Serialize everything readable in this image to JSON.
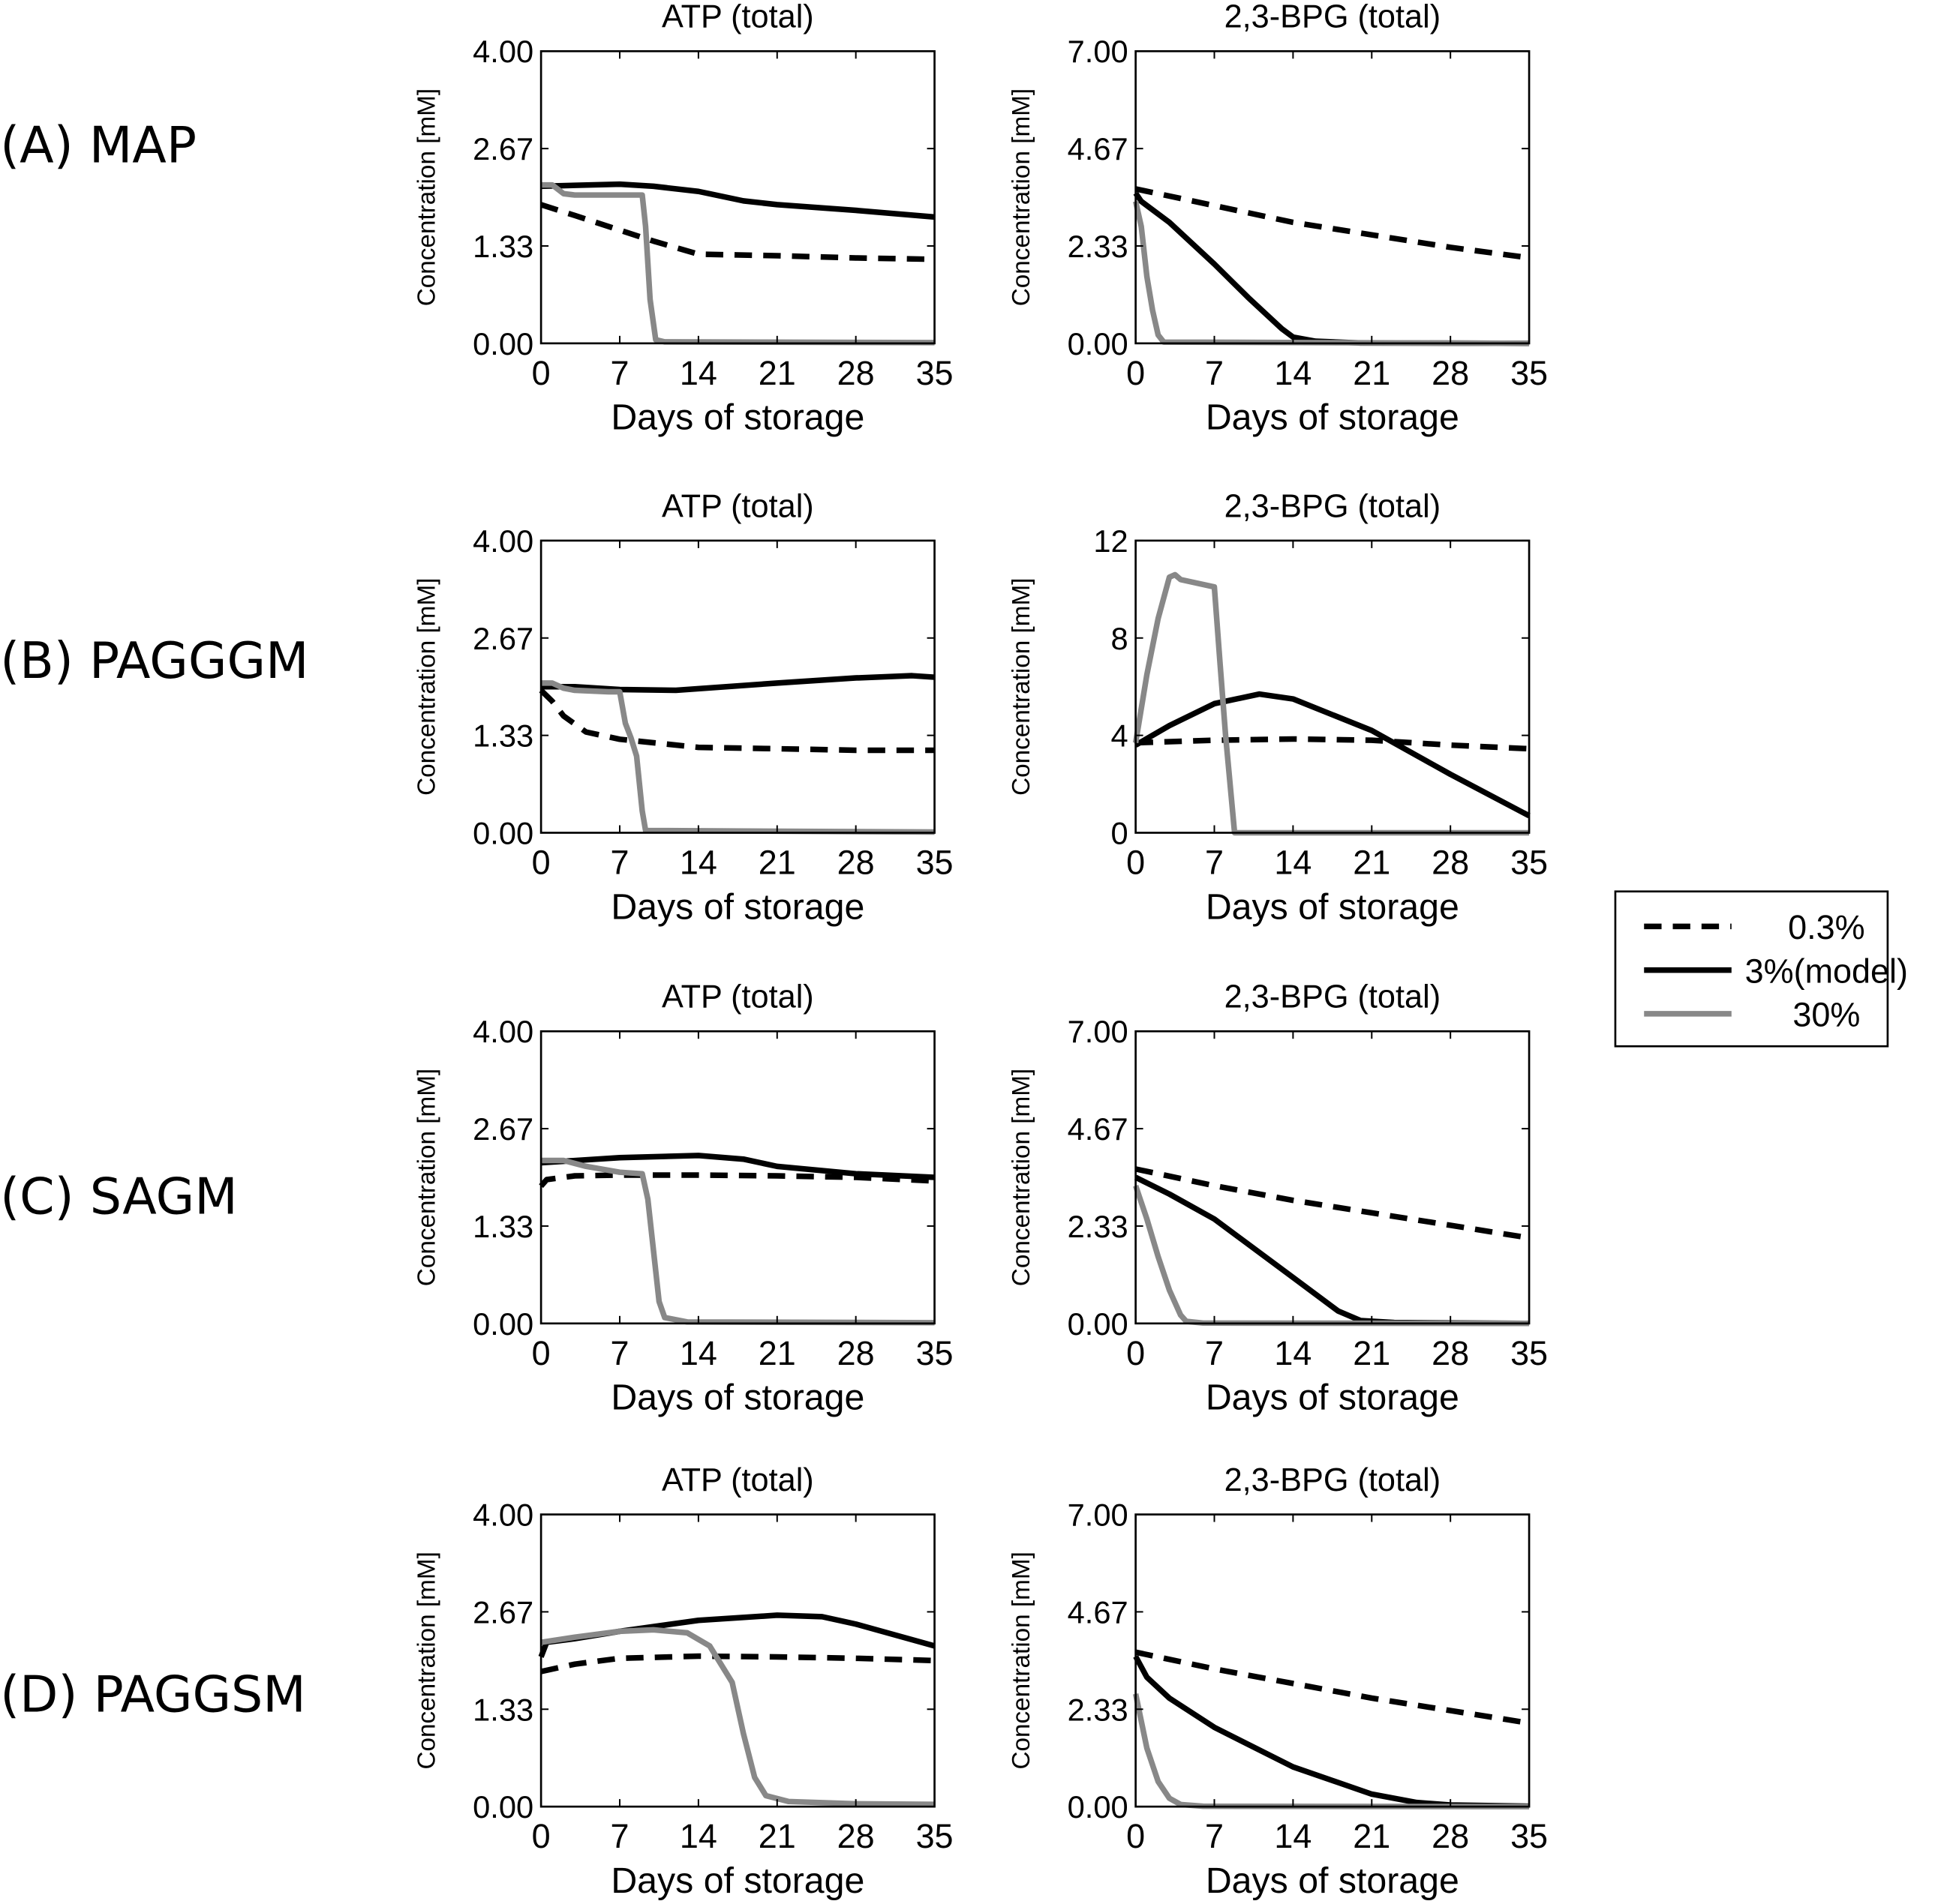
{
  "chart_data": {
    "type": "line",
    "legend": {
      "placement": "right",
      "entries": [
        {
          "label": "0.3%",
          "color": "#000000",
          "style": "dashed"
        },
        {
          "label": "3%(model)",
          "color": "#000000",
          "style": "solid"
        },
        {
          "label": "30%",
          "color": "#888888",
          "style": "solid"
        }
      ]
    },
    "rows": [
      {
        "label": "(A) MAP",
        "panels": [
          {
            "title": "ATP (total)",
            "xlabel": "Days of storage",
            "ylabel": "Concentration [mM]",
            "xlim": [
              0,
              35
            ],
            "ylim": [
              0,
              4
            ],
            "xticks": [
              "0",
              "7",
              "14",
              "21",
              "28",
              "35"
            ],
            "yticks": [
              "0.00",
              "1.33",
              "2.67",
              "4.00"
            ],
            "series": [
              {
                "x": [
                  0,
                  3,
                  7,
                  10,
                  14,
                  21,
                  28,
                  35
                ],
                "y": [
                  1.9,
                  1.75,
                  1.55,
                  1.4,
                  1.22,
                  1.2,
                  1.17,
                  1.15
                ]
              },
              {
                "x": [
                  0,
                  7,
                  10,
                  14,
                  18,
                  21,
                  28,
                  35
                ],
                "y": [
                  2.15,
                  2.18,
                  2.15,
                  2.08,
                  1.95,
                  1.9,
                  1.82,
                  1.73
                ]
              },
              {
                "x": [
                  0,
                  1,
                  2,
                  3,
                  7,
                  9,
                  9.3,
                  9.7,
                  10.2,
                  11,
                  35
                ],
                "y": [
                  2.17,
                  2.17,
                  2.05,
                  2.03,
                  2.03,
                  2.03,
                  1.6,
                  0.6,
                  0.05,
                  0.02,
                  0.01
                ]
              }
            ]
          },
          {
            "title": "2,3-BPG (total)",
            "xlabel": "Days of storage",
            "ylabel": "Concentration [mM]",
            "xlim": [
              0,
              35
            ],
            "ylim": [
              0,
              7
            ],
            "xticks": [
              "0",
              "7",
              "14",
              "21",
              "28",
              "35"
            ],
            "yticks": [
              "0.00",
              "2.33",
              "4.67",
              "7.00"
            ],
            "series": [
              {
                "x": [
                  0,
                  7,
                  14,
                  21,
                  28,
                  35
                ],
                "y": [
                  3.7,
                  3.3,
                  2.9,
                  2.6,
                  2.3,
                  2.05
                ]
              },
              {
                "x": [
                  0,
                  0.5,
                  3,
                  7,
                  10,
                  13,
                  14,
                  16,
                  20,
                  35
                ],
                "y": [
                  3.6,
                  3.4,
                  2.9,
                  1.9,
                  1.1,
                  0.35,
                  0.15,
                  0.05,
                  0.01,
                  0
                ]
              },
              {
                "x": [
                  0,
                  0.5,
                  1,
                  1.5,
                  2,
                  2.5,
                  35
                ],
                "y": [
                  3.4,
                  2.8,
                  1.6,
                  0.8,
                  0.2,
                  0.03,
                  0
                ]
              }
            ]
          }
        ]
      },
      {
        "label": "(B) PAGGGM",
        "panels": [
          {
            "title": "ATP (total)",
            "xlabel": "Days of storage",
            "ylabel": "Concentration [mM]",
            "xlim": [
              0,
              35
            ],
            "ylim": [
              0,
              4
            ],
            "xticks": [
              "0",
              "7",
              "14",
              "21",
              "28",
              "35"
            ],
            "yticks": [
              "0.00",
              "1.33",
              "2.67",
              "4.00"
            ],
            "series": [
              {
                "x": [
                  0,
                  1,
                  2,
                  4,
                  7,
                  14,
                  21,
                  28,
                  35
                ],
                "y": [
                  1.95,
                  1.8,
                  1.6,
                  1.38,
                  1.28,
                  1.17,
                  1.15,
                  1.13,
                  1.13
                ]
              },
              {
                "x": [
                  0,
                  3,
                  7,
                  12,
                  21,
                  28,
                  33,
                  35
                ],
                "y": [
                  2.0,
                  2.0,
                  1.96,
                  1.95,
                  2.05,
                  2.12,
                  2.15,
                  2.13
                ]
              },
              {
                "x": [
                  0,
                  1,
                  2,
                  3,
                  6,
                  7,
                  7.5,
                  8,
                  8.5,
                  9,
                  9.3,
                  35
                ],
                "y": [
                  2.05,
                  2.05,
                  1.98,
                  1.95,
                  1.93,
                  1.93,
                  1.5,
                  1.3,
                  1.05,
                  0.3,
                  0.03,
                  0.01
                ]
              }
            ]
          },
          {
            "title": "2,3-BPG (total)",
            "xlabel": "Days of storage",
            "ylabel": "Concentration [mM]",
            "xlim": [
              0,
              35
            ],
            "ylim": [
              0,
              12
            ],
            "xticks": [
              "0",
              "7",
              "14",
              "21",
              "28",
              "35"
            ],
            "yticks": [
              "0",
              "4",
              "8",
              "12"
            ],
            "series": [
              {
                "x": [
                  0,
                  7,
                  14,
                  21,
                  28,
                  35
                ],
                "y": [
                  3.7,
                  3.8,
                  3.85,
                  3.8,
                  3.6,
                  3.45
                ]
              },
              {
                "x": [
                  0,
                  3,
                  7,
                  11,
                  14,
                  21,
                  28,
                  35
                ],
                "y": [
                  3.6,
                  4.4,
                  5.3,
                  5.7,
                  5.5,
                  4.2,
                  2.4,
                  0.7
                ]
              },
              {
                "x": [
                  0,
                  1,
                  2,
                  3,
                  3.5,
                  4,
                  7,
                  7.5,
                  8,
                  8.5,
                  8.8,
                  35
                ],
                "y": [
                  3.7,
                  6.5,
                  8.8,
                  10.5,
                  10.6,
                  10.4,
                  10.1,
                  7,
                  4,
                  1.5,
                  0,
                  0
                ]
              }
            ]
          }
        ]
      },
      {
        "label": "(C) SAGM",
        "panels": [
          {
            "title": "ATP (total)",
            "xlabel": "Days of storage",
            "ylabel": "Concentration [mM]",
            "xlim": [
              0,
              35
            ],
            "ylim": [
              0,
              4
            ],
            "xticks": [
              "0",
              "7",
              "14",
              "21",
              "28",
              "35"
            ],
            "yticks": [
              "0.00",
              "1.33",
              "2.67",
              "4.00"
            ],
            "series": [
              {
                "x": [
                  0,
                  0.5,
                  3,
                  7,
                  14,
                  21,
                  28,
                  35
                ],
                "y": [
                  1.88,
                  1.97,
                  2.02,
                  2.03,
                  2.03,
                  2.02,
                  2.0,
                  1.95
                ]
              },
              {
                "x": [
                  0,
                  7,
                  14,
                  18,
                  21,
                  28,
                  35
                ],
                "y": [
                  2.2,
                  2.27,
                  2.3,
                  2.25,
                  2.15,
                  2.05,
                  2.0
                ]
              },
              {
                "x": [
                  0,
                  2,
                  4,
                  7,
                  9,
                  9.5,
                  10,
                  10.5,
                  11,
                  13,
                  35
                ],
                "y": [
                  2.23,
                  2.23,
                  2.15,
                  2.07,
                  2.05,
                  1.7,
                  1.0,
                  0.3,
                  0.08,
                  0.02,
                  0.01
                ]
              }
            ]
          },
          {
            "title": "2,3-BPG (total)",
            "xlabel": "Days of storage",
            "ylabel": "Concentration [mM]",
            "xlim": [
              0,
              35
            ],
            "ylim": [
              0,
              7
            ],
            "xticks": [
              "0",
              "7",
              "14",
              "21",
              "28",
              "35"
            ],
            "yticks": [
              "0.00",
              "2.33",
              "4.67",
              "7.00"
            ],
            "series": [
              {
                "x": [
                  0,
                  7,
                  14,
                  21,
                  28,
                  35
                ],
                "y": [
                  3.7,
                  3.3,
                  2.95,
                  2.65,
                  2.35,
                  2.05
                ]
              },
              {
                "x": [
                  0,
                  3,
                  7,
                  14,
                  18,
                  20,
                  23,
                  35
                ],
                "y": [
                  3.5,
                  3.1,
                  2.5,
                  1.1,
                  0.3,
                  0.07,
                  0.02,
                  0
                ]
              },
              {
                "x": [
                  0,
                  1,
                  2,
                  3,
                  4,
                  4.5,
                  6,
                  35
                ],
                "y": [
                  3.3,
                  2.5,
                  1.6,
                  0.8,
                  0.2,
                  0.05,
                  0.01,
                  0
                ]
              }
            ]
          }
        ]
      },
      {
        "label": "(D) PAGGSM",
        "panels": [
          {
            "title": "ATP (total)",
            "xlabel": "Days of storage",
            "ylabel": "Concentration [mM]",
            "xlim": [
              0,
              35
            ],
            "ylim": [
              0,
              4
            ],
            "xticks": [
              "0",
              "7",
              "14",
              "21",
              "28",
              "35"
            ],
            "yticks": [
              "0.00",
              "1.33",
              "2.67",
              "4.00"
            ],
            "series": [
              {
                "x": [
                  0,
                  3,
                  7,
                  14,
                  21,
                  28,
                  35
                ],
                "y": [
                  1.85,
                  1.95,
                  2.03,
                  2.06,
                  2.05,
                  2.03,
                  2.0
                ]
              },
              {
                "x": [
                  0,
                  0.5,
                  3,
                  7,
                  14,
                  21,
                  25,
                  28,
                  35
                ],
                "y": [
                  2.05,
                  2.25,
                  2.3,
                  2.4,
                  2.55,
                  2.62,
                  2.6,
                  2.5,
                  2.2
                ]
              },
              {
                "x": [
                  0,
                  3,
                  7,
                  10,
                  13,
                  15,
                  17,
                  18,
                  19,
                  20,
                  22,
                  28,
                  35
                ],
                "y": [
                  2.25,
                  2.32,
                  2.4,
                  2.42,
                  2.38,
                  2.2,
                  1.7,
                  1.0,
                  0.4,
                  0.15,
                  0.07,
                  0.04,
                  0.03
                ]
              }
            ]
          },
          {
            "title": "2,3-BPG (total)",
            "xlabel": "Days of storage",
            "ylabel": "Concentration [mM]",
            "xlim": [
              0,
              35
            ],
            "ylim": [
              0,
              7
            ],
            "xticks": [
              "0",
              "7",
              "14",
              "21",
              "28",
              "35"
            ],
            "yticks": [
              "0.00",
              "2.33",
              "4.67",
              "7.00"
            ],
            "series": [
              {
                "x": [
                  0,
                  7,
                  14,
                  21,
                  28,
                  35
                ],
                "y": [
                  3.7,
                  3.3,
                  2.95,
                  2.6,
                  2.3,
                  2.0
                ]
              },
              {
                "x": [
                  0,
                  1,
                  3,
                  7,
                  14,
                  21,
                  25,
                  28,
                  35
                ],
                "y": [
                  3.6,
                  3.1,
                  2.6,
                  1.9,
                  0.95,
                  0.3,
                  0.1,
                  0.04,
                  0.01
                ]
              },
              {
                "x": [
                  0,
                  1,
                  2,
                  3,
                  4,
                  6,
                  35
                ],
                "y": [
                  2.7,
                  1.4,
                  0.6,
                  0.2,
                  0.05,
                  0.01,
                  0
                ]
              }
            ]
          }
        ]
      }
    ]
  }
}
